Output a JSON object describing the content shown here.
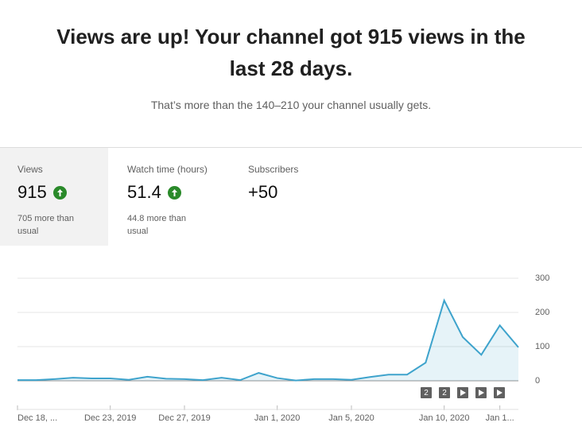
{
  "header": {
    "title": "Views are up! Your channel got 915 views in the last 28 days.",
    "subtitle": "That’s more than the 140–210 your channel usually gets."
  },
  "metrics": [
    {
      "label": "Views",
      "value": "915",
      "note": "705 more than usual",
      "trend": "up"
    },
    {
      "label": "Watch time (hours)",
      "value": "51.4",
      "note": "44.8 more than usual",
      "trend": "up"
    },
    {
      "label": "Subscribers",
      "value": "+50"
    }
  ],
  "chart_data": {
    "type": "area",
    "categories": [
      "Dec 18, ...",
      null,
      null,
      null,
      null,
      "Dec 23, 2019",
      null,
      null,
      null,
      "Dec 27, 2019",
      null,
      null,
      null,
      null,
      "Jan 1, 2020",
      null,
      null,
      null,
      "Jan 5, 2020",
      null,
      null,
      null,
      null,
      "Jan 10, 2020",
      null,
      null,
      "Jan 1...",
      null
    ],
    "series": [
      {
        "name": "Views",
        "color": "#3ea3cc",
        "values": [
          2,
          2,
          5,
          9,
          7,
          7,
          3,
          12,
          6,
          5,
          2,
          9,
          2,
          23,
          8,
          1,
          5,
          5,
          3,
          11,
          18,
          18,
          53,
          235,
          128,
          76,
          162,
          98
        ]
      }
    ],
    "ylim": [
      0,
      300
    ],
    "yticks": [
      0,
      100,
      200,
      300
    ],
    "grid": true,
    "markers": [
      "2",
      "2"
    ]
  }
}
